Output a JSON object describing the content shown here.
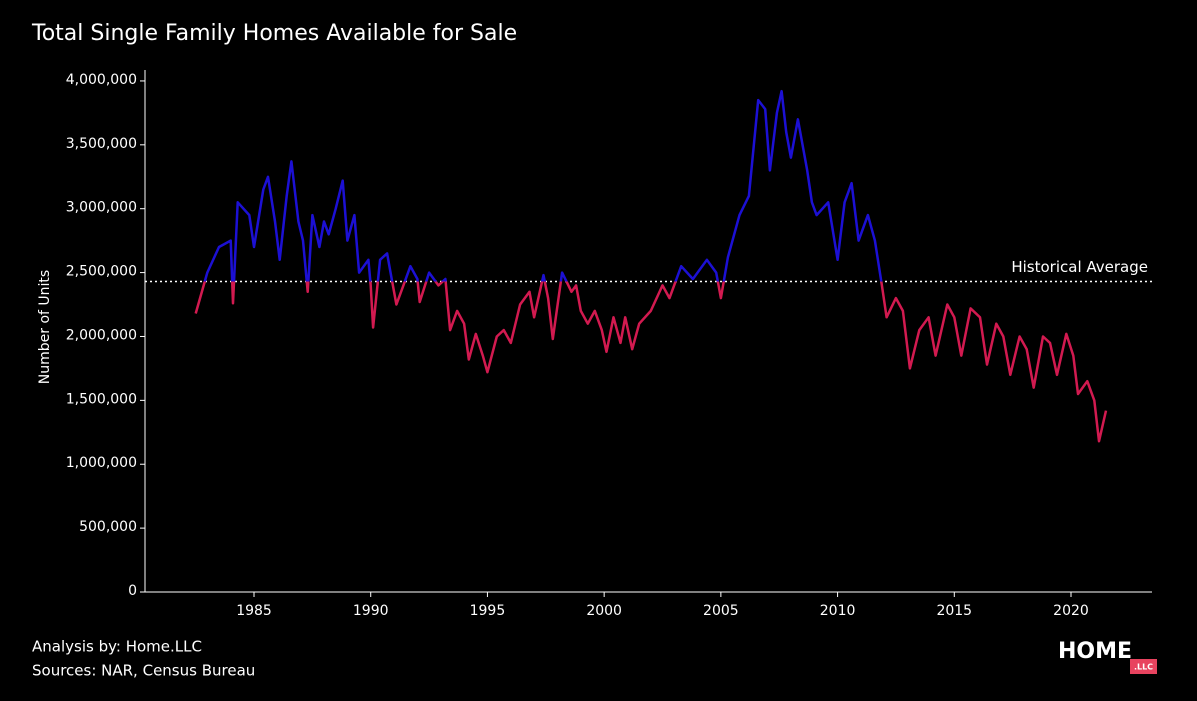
{
  "chart_data": {
    "type": "line",
    "title": "Total Single Family Homes Available for Sale",
    "y_label": "Number of Units",
    "footer": [
      "Analysis by: Home.LLC",
      "Sources: NAR, Census Bureau"
    ],
    "logo": {
      "main": "HOME",
      "badge": ".LLC"
    },
    "reference_line": {
      "label": "Historical Average",
      "value": 2430000
    },
    "colors": {
      "above": "#1c10d4",
      "below": "#d21a50"
    },
    "xlim": [
      1980.33,
      2023.47
    ],
    "ylim": [
      0,
      4070000
    ],
    "xticks": [
      1985,
      1990,
      1995,
      2000,
      2005,
      2010,
      2015,
      2020
    ],
    "yticks": [
      0,
      {
        "value": 500000,
        "label": "500,000"
      },
      {
        "value": 1000000,
        "label": "1,000,000"
      },
      {
        "value": 1500000,
        "label": "1,500,000"
      },
      {
        "value": 2000000,
        "label": "2,000,000"
      },
      {
        "value": 2500000,
        "label": "2,500,000"
      },
      {
        "value": 3000000,
        "label": "3,000,000"
      },
      {
        "value": 3500000,
        "label": "3,500,000"
      },
      {
        "value": 4000000,
        "label": "4,000,000"
      }
    ],
    "x": [
      1982.5,
      1983.0,
      1983.5,
      1984.0,
      1984.1,
      1984.3,
      1984.8,
      1985.0,
      1985.4,
      1985.6,
      1985.9,
      1986.1,
      1986.4,
      1986.6,
      1986.9,
      1987.1,
      1987.3,
      1987.5,
      1987.8,
      1988.0,
      1988.2,
      1988.5,
      1988.8,
      1989.0,
      1989.3,
      1989.5,
      1989.9,
      1990.0,
      1990.1,
      1990.4,
      1990.7,
      1990.9,
      1991.1,
      1991.4,
      1991.7,
      1992.0,
      1992.1,
      1992.5,
      1992.9,
      1993.2,
      1993.4,
      1993.7,
      1994.0,
      1994.2,
      1994.5,
      1994.8,
      1995.0,
      1995.4,
      1995.7,
      1996.0,
      1996.4,
      1996.8,
      1997.0,
      1997.4,
      1997.6,
      1997.8,
      1998.2,
      1998.6,
      1998.8,
      1999.0,
      1999.3,
      1999.6,
      1999.9,
      2000.1,
      2000.4,
      2000.7,
      2000.9,
      2001.2,
      2001.5,
      2002.0,
      2002.5,
      2002.8,
      2003.3,
      2003.8,
      2004.4,
      2004.8,
      2005.0,
      2005.3,
      2005.8,
      2006.2,
      2006.6,
      2006.9,
      2007.1,
      2007.4,
      2007.6,
      2007.8,
      2008.0,
      2008.3,
      2008.7,
      2008.9,
      2009.1,
      2009.6,
      2010.0,
      2010.3,
      2010.6,
      2010.9,
      2011.3,
      2011.6,
      2011.9,
      2012.1,
      2012.5,
      2012.8,
      2013.1,
      2013.5,
      2013.9,
      2014.2,
      2014.7,
      2015.0,
      2015.3,
      2015.7,
      2016.1,
      2016.4,
      2016.8,
      2017.1,
      2017.4,
      2017.8,
      2018.1,
      2018.4,
      2018.8,
      2019.1,
      2019.4,
      2019.8,
      2020.1,
      2020.3,
      2020.7,
      2021.0,
      2021.2,
      2021.5
    ],
    "values": [
      2180000,
      2500000,
      2700000,
      2750000,
      2260000,
      3050000,
      2950000,
      2700000,
      3150000,
      3250000,
      2900000,
      2600000,
      3100000,
      3370000,
      2900000,
      2750000,
      2350000,
      2950000,
      2700000,
      2900000,
      2800000,
      3000000,
      3220000,
      2750000,
      2950000,
      2500000,
      2600000,
      2400000,
      2070000,
      2600000,
      2650000,
      2450000,
      2250000,
      2400000,
      2550000,
      2450000,
      2270000,
      2500000,
      2400000,
      2450000,
      2050000,
      2200000,
      2100000,
      1820000,
      2020000,
      1850000,
      1720000,
      2000000,
      2050000,
      1950000,
      2250000,
      2350000,
      2150000,
      2480000,
      2300000,
      1980000,
      2500000,
      2350000,
      2400000,
      2200000,
      2100000,
      2200000,
      2050000,
      1880000,
      2150000,
      1950000,
      2150000,
      1900000,
      2100000,
      2200000,
      2400000,
      2300000,
      2550000,
      2450000,
      2600000,
      2500000,
      2300000,
      2620000,
      2950000,
      3100000,
      3850000,
      3780000,
      3300000,
      3750000,
      3920000,
      3600000,
      3400000,
      3700000,
      3300000,
      3050000,
      2950000,
      3050000,
      2600000,
      3050000,
      3200000,
      2750000,
      2950000,
      2750000,
      2400000,
      2150000,
      2300000,
      2200000,
      1750000,
      2050000,
      2150000,
      1850000,
      2250000,
      2150000,
      1850000,
      2220000,
      2150000,
      1780000,
      2100000,
      2000000,
      1700000,
      2000000,
      1900000,
      1600000,
      2000000,
      1950000,
      1700000,
      2020000,
      1850000,
      1550000,
      1650000,
      1500000,
      1180000,
      1420000
    ]
  }
}
